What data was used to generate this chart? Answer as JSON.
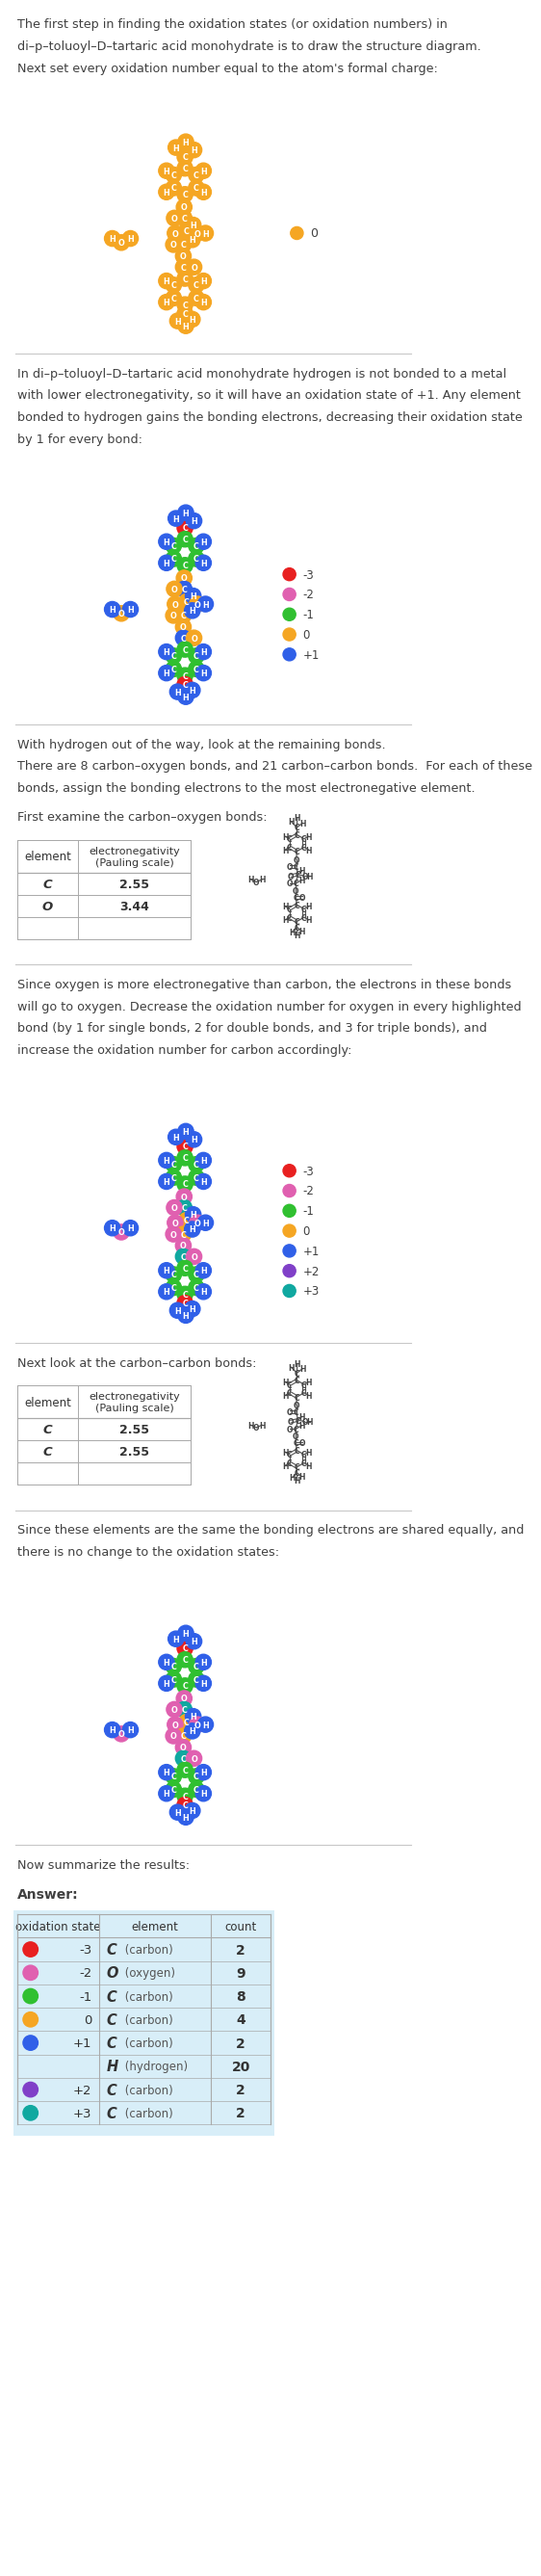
{
  "title_text": "The first step in finding the oxidation states (or oxidation numbers) in\ndi–p–toluoyl–D–tartaric acid monohydrate is to draw the structure diagram.\nNext set every oxidation number equal to the atom's formal charge:",
  "section2_text": "In di–p–toluoyl–D–tartaric acid monohydrate hydrogen is not bonded to a metal\nwith lower electronegativity, so it will have an oxidation state of +1. Any element\nbonded to hydrogen gains the bonding electrons, decreasing their oxidation state\nby 1 for every bond:",
  "section3_text": "With hydrogen out of the way, look at the remaining bonds.\nThere are 8 carbon–oxygen bonds, and 21 carbon–carbon bonds.  For each of these\nbonds, assign the bonding electrons to the most electronegative element.",
  "section4_text": "First examine the carbon–oxygen bonds:",
  "section5_text": "Since oxygen is more electronegative than carbon, the electrons in these bonds\nwill go to oxygen. Decrease the oxidation number for oxygen in every highlighted\nbond (by 1 for single bonds, 2 for double bonds, and 3 for triple bonds), and\nincrease the oxidation number for carbon accordingly:",
  "section6_text": "Next look at the carbon–carbon bonds:",
  "section7_text": "Since these elements are the same the bonding electrons are shared equally, and\nthere is no change to the oxidation states:",
  "section8_text": "Now summarize the results:",
  "table1_header": [
    "element",
    "electronegativity\n(Pauling scale)"
  ],
  "table1_rows": [
    [
      "C",
      "2.55"
    ],
    [
      "O",
      "3.44"
    ],
    [
      "",
      ""
    ]
  ],
  "table2_rows": [
    [
      "C",
      "2.55"
    ],
    [
      "C",
      "2.55"
    ],
    [
      "",
      ""
    ]
  ],
  "answer_rows": [
    [
      "-3",
      "C",
      "carbon",
      "2"
    ],
    [
      "-2",
      "O",
      "oxygen",
      "9"
    ],
    [
      "-1",
      "C",
      "carbon",
      "8"
    ],
    [
      "0",
      "C",
      "carbon",
      "4"
    ],
    [
      "+1",
      "C",
      "carbon",
      "2"
    ],
    [
      "",
      "H",
      "hydrogen",
      "20"
    ],
    [
      "+2",
      "C",
      "carbon",
      "2"
    ],
    [
      "+3",
      "C",
      "carbon",
      "2"
    ]
  ],
  "orange": "#f5a623",
  "red_c": "#e82020",
  "pink_o": "#e060b0",
  "green_c": "#30c030",
  "blue_h": "#3060e8",
  "blue_c": "#3060e8",
  "purple_c": "#8040c8",
  "teal_c": "#10a8a0",
  "gray_c": "#606060",
  "gray_bond": "#888888",
  "light_blue_bg": "#d8eef8",
  "text_color": "#404040",
  "divider_color": "#c8c8c8",
  "dot_colors": [
    "#e82020",
    "#e060b0",
    "#30c030",
    "#f5a623",
    "#3060e8",
    "#3060e8",
    "#8040c8",
    "#10a8a0"
  ],
  "dot_show": [
    true,
    true,
    true,
    true,
    true,
    false,
    true,
    true
  ]
}
